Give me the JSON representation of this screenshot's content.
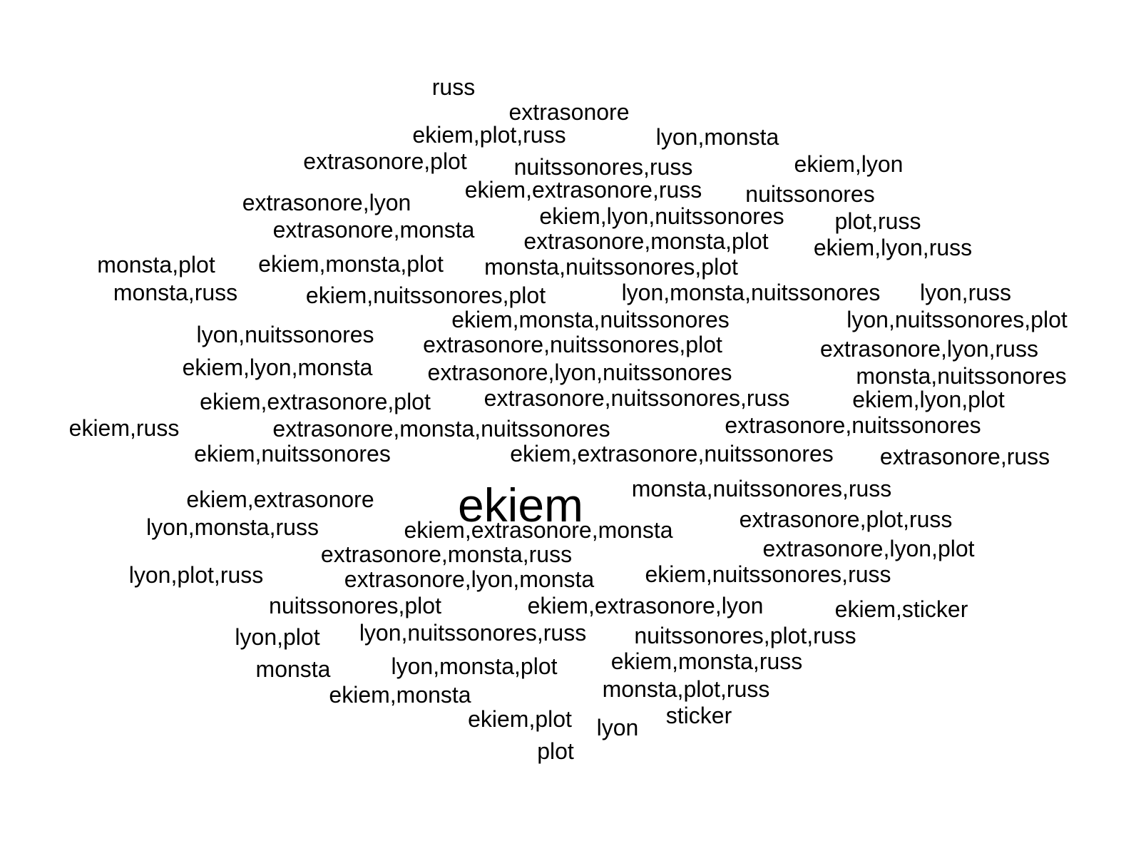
{
  "chart_data": {
    "type": "wordcloud",
    "color": "#000000",
    "words": [
      {
        "text": "ekiem",
        "weight": 2
      },
      {
        "text": "russ",
        "weight": 1
      },
      {
        "text": "extrasonore",
        "weight": 1
      },
      {
        "text": "ekiem,plot,russ",
        "weight": 1
      },
      {
        "text": "lyon,monsta",
        "weight": 1
      },
      {
        "text": "extrasonore,plot",
        "weight": 1
      },
      {
        "text": "nuitssonores,russ",
        "weight": 1
      },
      {
        "text": "ekiem,lyon",
        "weight": 1
      },
      {
        "text": "ekiem,extrasonore,russ",
        "weight": 1
      },
      {
        "text": "nuitssonores",
        "weight": 1
      },
      {
        "text": "extrasonore,lyon",
        "weight": 1
      },
      {
        "text": "ekiem,lyon,nuitssonores",
        "weight": 1
      },
      {
        "text": "plot,russ",
        "weight": 1
      },
      {
        "text": "extrasonore,monsta",
        "weight": 1
      },
      {
        "text": "extrasonore,monsta,plot",
        "weight": 1
      },
      {
        "text": "ekiem,lyon,russ",
        "weight": 1
      },
      {
        "text": "monsta,plot",
        "weight": 1
      },
      {
        "text": "ekiem,monsta,plot",
        "weight": 1
      },
      {
        "text": "monsta,nuitssonores,plot",
        "weight": 1
      },
      {
        "text": "monsta,russ",
        "weight": 1
      },
      {
        "text": "ekiem,nuitssonores,plot",
        "weight": 1
      },
      {
        "text": "lyon,monsta,nuitssonores",
        "weight": 1
      },
      {
        "text": "lyon,russ",
        "weight": 1
      },
      {
        "text": "ekiem,monsta,nuitssonores",
        "weight": 1
      },
      {
        "text": "lyon,nuitssonores,plot",
        "weight": 1
      },
      {
        "text": "lyon,nuitssonores",
        "weight": 1
      },
      {
        "text": "extrasonore,nuitssonores,plot",
        "weight": 1
      },
      {
        "text": "extrasonore,lyon,russ",
        "weight": 1
      },
      {
        "text": "ekiem,lyon,monsta",
        "weight": 1
      },
      {
        "text": "extrasonore,lyon,nuitssonores",
        "weight": 1
      },
      {
        "text": "monsta,nuitssonores",
        "weight": 1
      },
      {
        "text": "ekiem,extrasonore,plot",
        "weight": 1
      },
      {
        "text": "extrasonore,nuitssonores,russ",
        "weight": 1
      },
      {
        "text": "ekiem,lyon,plot",
        "weight": 1
      },
      {
        "text": "ekiem,russ",
        "weight": 1
      },
      {
        "text": "extrasonore,monsta,nuitssonores",
        "weight": 1
      },
      {
        "text": "extrasonore,nuitssonores",
        "weight": 1
      },
      {
        "text": "ekiem,nuitssonores",
        "weight": 1
      },
      {
        "text": "ekiem,extrasonore,nuitssonores",
        "weight": 1
      },
      {
        "text": "extrasonore,russ",
        "weight": 1
      },
      {
        "text": "monsta,nuitssonores,russ",
        "weight": 1
      },
      {
        "text": "ekiem,extrasonore",
        "weight": 1
      },
      {
        "text": "extrasonore,plot,russ",
        "weight": 1
      },
      {
        "text": "lyon,monsta,russ",
        "weight": 1
      },
      {
        "text": "ekiem,extrasonore,monsta",
        "weight": 1
      },
      {
        "text": "extrasonore,lyon,plot",
        "weight": 1
      },
      {
        "text": "extrasonore,monsta,russ",
        "weight": 1
      },
      {
        "text": "lyon,plot,russ",
        "weight": 1
      },
      {
        "text": "extrasonore,lyon,monsta",
        "weight": 1
      },
      {
        "text": "ekiem,nuitssonores,russ",
        "weight": 1
      },
      {
        "text": "nuitssonores,plot",
        "weight": 1
      },
      {
        "text": "ekiem,extrasonore,lyon",
        "weight": 1
      },
      {
        "text": "ekiem,sticker",
        "weight": 1
      },
      {
        "text": "lyon,plot",
        "weight": 1
      },
      {
        "text": "lyon,nuitssonores,russ",
        "weight": 1
      },
      {
        "text": "nuitssonores,plot,russ",
        "weight": 1
      },
      {
        "text": "monsta",
        "weight": 1
      },
      {
        "text": "lyon,monsta,plot",
        "weight": 1
      },
      {
        "text": "ekiem,monsta,russ",
        "weight": 1
      },
      {
        "text": "ekiem,monsta",
        "weight": 1
      },
      {
        "text": "monsta,plot,russ",
        "weight": 1
      },
      {
        "text": "ekiem,plot",
        "weight": 1
      },
      {
        "text": "sticker",
        "weight": 1
      },
      {
        "text": "lyon",
        "weight": 1
      },
      {
        "text": "plot",
        "weight": 1
      }
    ]
  }
}
